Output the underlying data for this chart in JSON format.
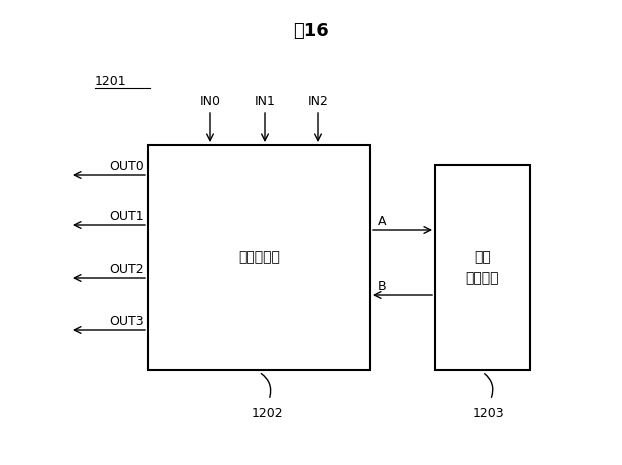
{
  "title": "図16",
  "background_color": "#ffffff",
  "label_1201": "1201",
  "label_1202": "1202",
  "label_1203": "1203",
  "main_box_label": "更新処理部",
  "buffer_box_label": "更新\nバッファ",
  "in_labels": [
    "IN0",
    "IN1",
    "IN2"
  ],
  "out_labels": [
    "OUT0",
    "OUT1",
    "OUT2",
    "OUT3"
  ],
  "label_A": "A",
  "label_B": "B",
  "text_color": "#000000",
  "box_edge_color": "#000000",
  "box_fill_color": "#ffffff",
  "arrow_color": "#000000",
  "fig_w": 6.22,
  "fig_h": 4.65,
  "dpi": 100
}
